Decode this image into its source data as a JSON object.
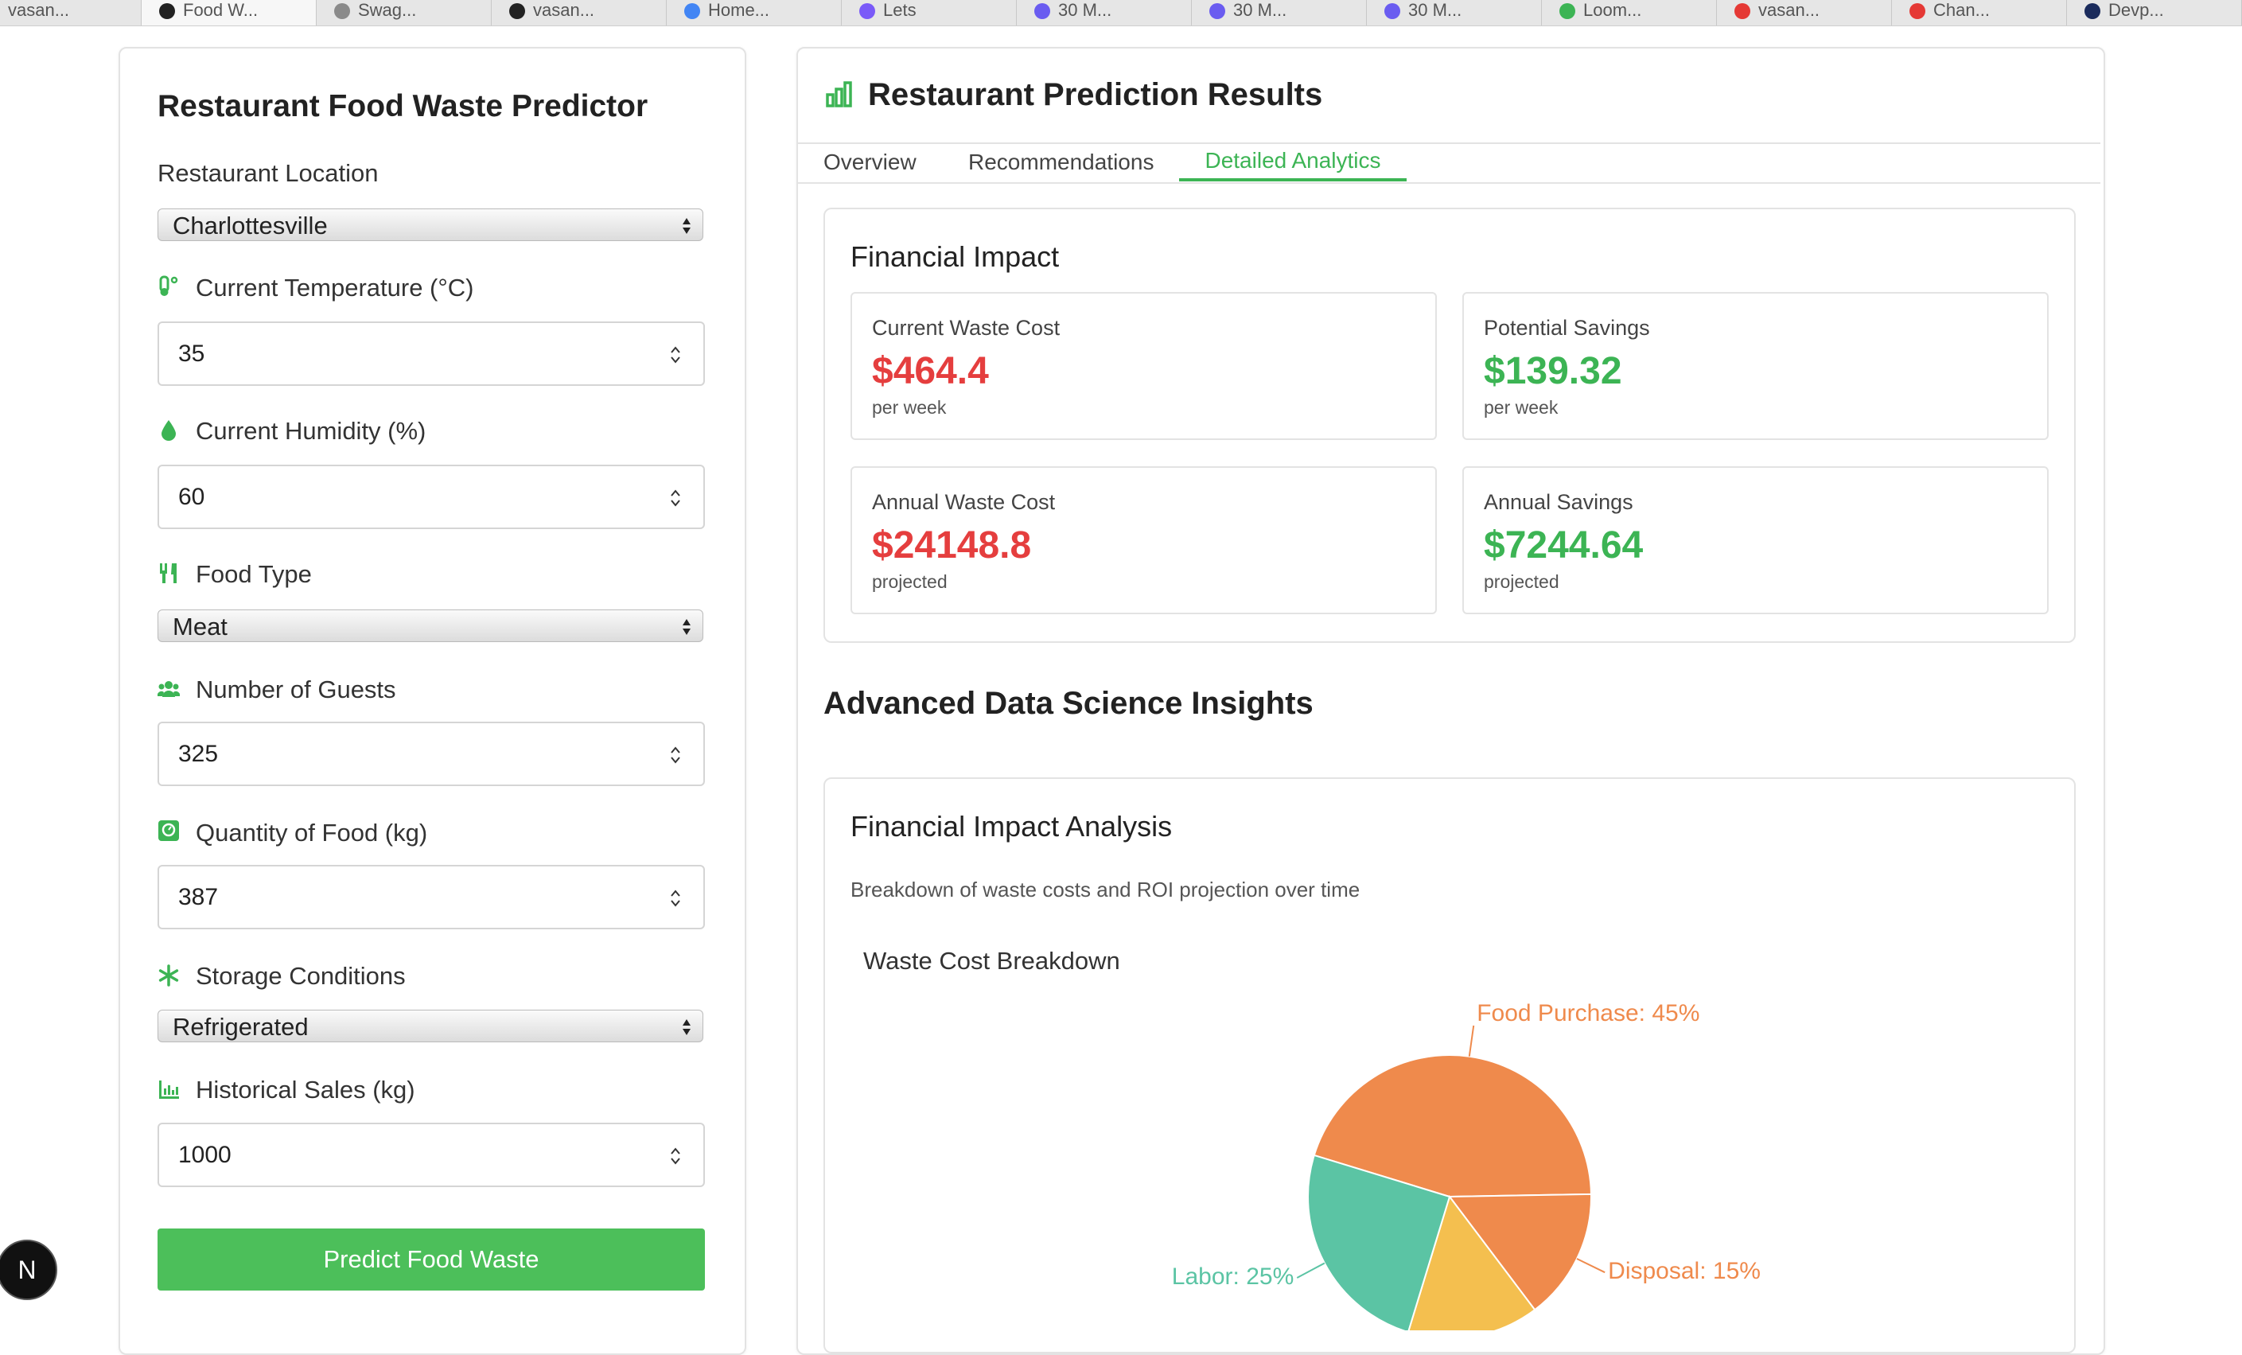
{
  "browser_tabs": [
    "vasan...",
    "Food W...",
    "Swag...",
    "vasan...",
    "Home...",
    "Lets",
    "30 M...",
    "30 M...",
    "30 M...",
    "Loom...",
    "vasan...",
    "Chan...",
    "Devp..."
  ],
  "form": {
    "title": "Restaurant Food Waste Predictor",
    "fields": [
      {
        "label": "Restaurant Location",
        "value": "Charlottesville"
      },
      {
        "label": "Current Temperature (°C)",
        "value": "35"
      },
      {
        "label": "Current Humidity (%)",
        "value": "60"
      },
      {
        "label": "Food Type",
        "value": "Meat"
      },
      {
        "label": "Number of Guests",
        "value": "325"
      },
      {
        "label": "Quantity of Food (kg)",
        "value": "387"
      },
      {
        "label": "Storage Conditions",
        "value": "Refrigerated"
      },
      {
        "label": "Historical Sales (kg)",
        "value": "1000"
      }
    ],
    "button": "Predict Food Waste"
  },
  "results": {
    "title": "Restaurant Prediction Results",
    "tabs": [
      "Overview",
      "Recommendations",
      "Detailed Analytics"
    ],
    "financial_impact": {
      "title": "Financial Impact",
      "cards": [
        {
          "label": "Current Waste Cost",
          "value": "$464.4",
          "note": "per week"
        },
        {
          "label": "Potential Savings",
          "value": "$139.32",
          "note": "per week"
        },
        {
          "label": "Annual Waste Cost",
          "value": "$24148.8",
          "note": "projected"
        },
        {
          "label": "Annual Savings",
          "value": "$7244.64",
          "note": "projected"
        }
      ]
    },
    "insights_title": "Advanced Data Science Insights",
    "analysis": {
      "title": "Financial Impact Analysis",
      "description": "Breakdown of waste costs and ROI projection over time",
      "chart": {
        "type": "pie",
        "title": "Waste Cost Breakdown",
        "values": [
          45,
          15,
          15,
          25
        ],
        "value_labels": [
          "Food Purchase: 45%",
          "Disposal: 15%",
          null,
          "Labor: 25%"
        ],
        "colors": [
          "#ef8a4c",
          "#ef8a4c",
          "#f4bf4f",
          "#5bc4a4"
        ]
      }
    }
  },
  "badge": "N"
}
